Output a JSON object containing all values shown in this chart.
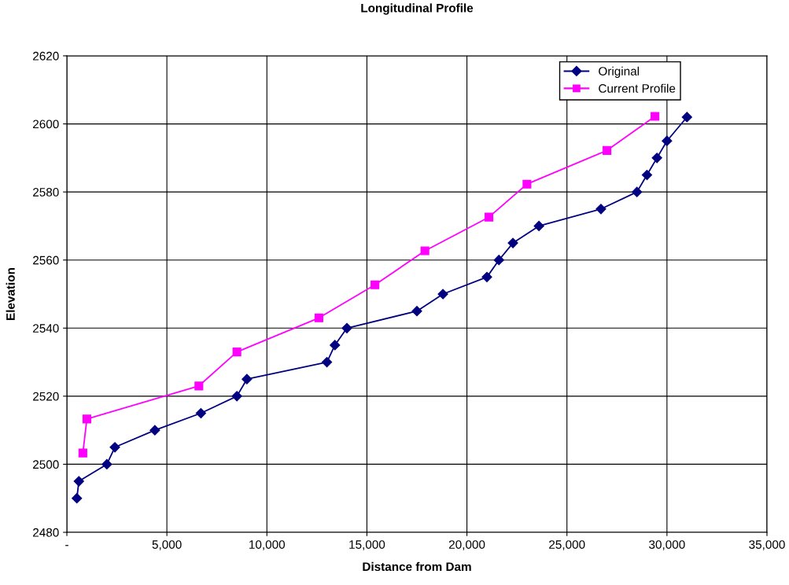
{
  "chart_data": {
    "type": "line",
    "title": "Longitudinal Profile",
    "xlabel": "Distance from Dam",
    "ylabel": "Elevation",
    "xlim": [
      0,
      35000
    ],
    "xticks": [
      {
        "value": 0,
        "label": "-"
      },
      {
        "value": 5000,
        "label": "5,000"
      },
      {
        "value": 10000,
        "label": "10,000"
      },
      {
        "value": 15000,
        "label": "15,000"
      },
      {
        "value": 20000,
        "label": "20,000"
      },
      {
        "value": 25000,
        "label": "25,000"
      },
      {
        "value": 30000,
        "label": "30,000"
      },
      {
        "value": 35000,
        "label": "35,000"
      }
    ],
    "ylim": [
      2480,
      2620
    ],
    "yticks": [
      2480,
      2500,
      2520,
      2540,
      2560,
      2580,
      2600,
      2620
    ],
    "grid": true,
    "legend": "top right",
    "line_style": "solid",
    "series": [
      {
        "name": "Original",
        "color": "#000080",
        "marker": "diamond",
        "x": [
          500,
          600,
          2000,
          2400,
          4400,
          6700,
          8500,
          9000,
          13000,
          13400,
          14000,
          17500,
          18800,
          21000,
          21600,
          22300,
          23600,
          26700,
          28500,
          29000,
          29500,
          30000,
          31000
        ],
        "values": [
          2490,
          2495,
          2500,
          2505,
          2510,
          2515,
          2520,
          2525,
          2530,
          2535,
          2540,
          2545,
          2550,
          2555,
          2560,
          2565,
          2570,
          2575,
          2580,
          2585,
          2590,
          2595,
          2602
        ]
      },
      {
        "name": "Current Profile",
        "color": "#ff00ff",
        "marker": "square",
        "x": [
          800,
          1000,
          6600,
          8500,
          12600,
          15400,
          17900,
          21100,
          23000,
          27000,
          29400
        ],
        "values": [
          2503.3,
          2513.3,
          2523,
          2533,
          2543,
          2552.7,
          2562.7,
          2572.6,
          2582.3,
          2592.2,
          2602.2
        ]
      }
    ]
  }
}
